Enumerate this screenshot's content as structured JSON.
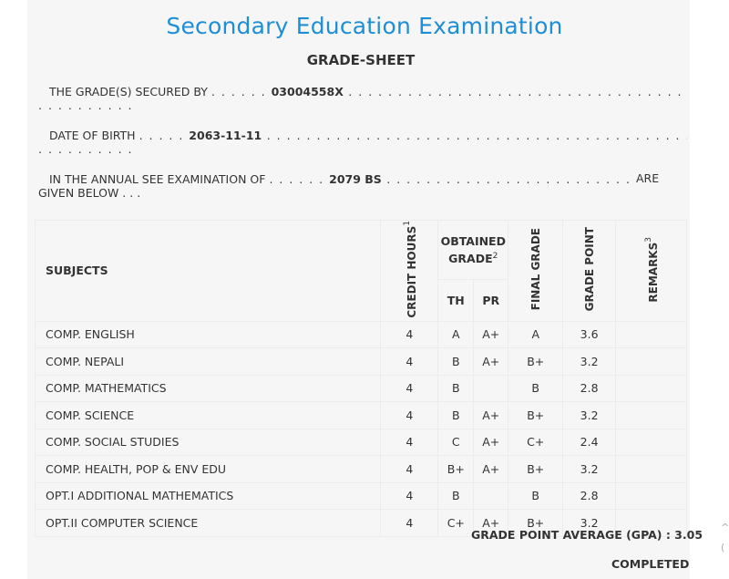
{
  "header": {
    "title": "Secondary Education Examination",
    "subtitle": "GRADE-SHEET"
  },
  "student": {
    "secured_by_label": "THE GRADE(S) SECURED BY",
    "symbol_no": "03004558X",
    "dob_label": "DATE OF BIRTH",
    "dob": "2063-11-11",
    "exam_label": "IN THE ANNUAL SEE EXAMINATION OF",
    "exam_year": "2079 BS",
    "are_label": "ARE",
    "given_below_label": "GIVEN BELOW . . ."
  },
  "table": {
    "headers": {
      "subjects": "SUBJECTS",
      "credit_hours": "CREDIT HOURS",
      "credit_sup": "1",
      "obtained_grade": "OBTAINED GRADE",
      "obtained_sup": "2",
      "th": "TH",
      "pr": "PR",
      "final_grade": "FINAL GRADE",
      "grade_point": "GRADE POINT",
      "remarks": "REMARKS",
      "remarks_sup": "3"
    },
    "rows": [
      {
        "subject": "COMP. ENGLISH",
        "credit": "4",
        "th": "A",
        "pr": "A+",
        "final": "A",
        "gp": "3.6",
        "remarks": ""
      },
      {
        "subject": "COMP. NEPALI",
        "credit": "4",
        "th": "B",
        "pr": "A+",
        "final": "B+",
        "gp": "3.2",
        "remarks": ""
      },
      {
        "subject": "COMP. MATHEMATICS",
        "credit": "4",
        "th": "B",
        "pr": "",
        "final": "B",
        "gp": "2.8",
        "remarks": ""
      },
      {
        "subject": "COMP. SCIENCE",
        "credit": "4",
        "th": "B",
        "pr": "A+",
        "final": "B+",
        "gp": "3.2",
        "remarks": ""
      },
      {
        "subject": "COMP. SOCIAL STUDIES",
        "credit": "4",
        "th": "C",
        "pr": "A+",
        "final": "C+",
        "gp": "2.4",
        "remarks": ""
      },
      {
        "subject": "COMP. HEALTH, POP & ENV EDU",
        "credit": "4",
        "th": "B+",
        "pr": "A+",
        "final": "B+",
        "gp": "3.2",
        "remarks": ""
      },
      {
        "subject": "OPT.I ADDITIONAL MATHEMATICS",
        "credit": "4",
        "th": "B",
        "pr": "",
        "final": "B",
        "gp": "2.8",
        "remarks": ""
      },
      {
        "subject": "OPT.II COMPUTER SCIENCE",
        "credit": "4",
        "th": "C+",
        "pr": "A+",
        "final": "B+",
        "gp": "3.2",
        "remarks": ""
      }
    ]
  },
  "summary": {
    "gpa_text": "GRADE POINT AVERAGE (GPA) : 3.05",
    "status": "COMPLETED"
  }
}
